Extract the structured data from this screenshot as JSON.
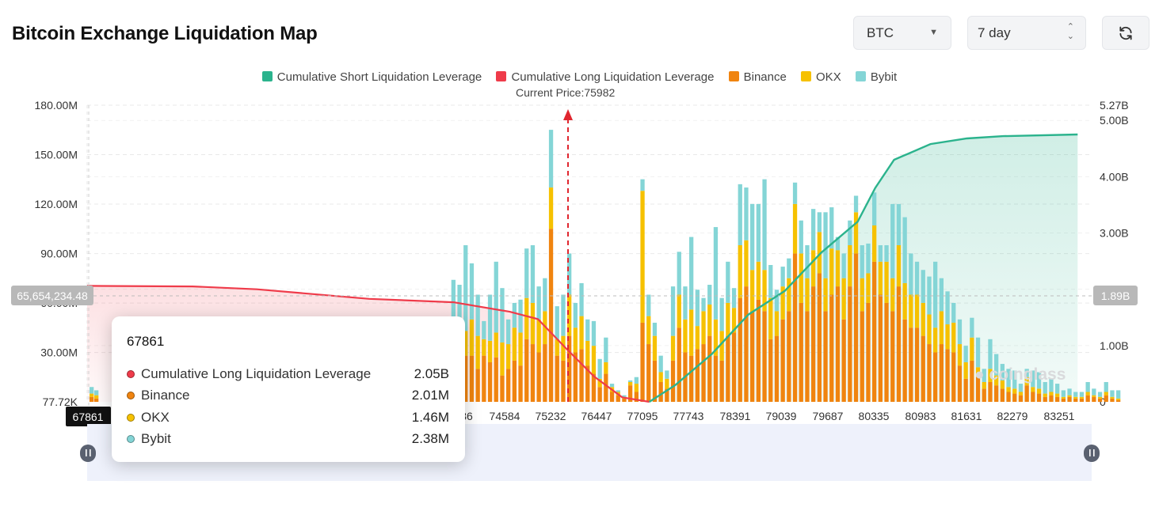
{
  "header": {
    "title": "Bitcoin Exchange Liquidation Map"
  },
  "controls": {
    "symbol": {
      "value": "BTC",
      "icon": "chevron-down-icon"
    },
    "range": {
      "value": "7 day",
      "icon": "up-down-icon"
    },
    "refresh": {
      "icon": "refresh-icon"
    }
  },
  "legend": [
    {
      "label": "Cumulative Short Liquidation Leverage",
      "color": "#2bb38d"
    },
    {
      "label": "Cumulative Long Liquidation Leverage",
      "color": "#ef3b4a"
    },
    {
      "label": "Binance",
      "color": "#f0840f"
    },
    {
      "label": "OKX",
      "color": "#f6c100"
    },
    {
      "label": "Bybit",
      "color": "#84d5d6"
    }
  ],
  "current_price_label": "Current Price:75982",
  "crosshair": {
    "left_value": "65,654,234.48",
    "right_value": "1.89B",
    "x_value": "67861"
  },
  "tooltip": {
    "title": "67861",
    "rows": [
      {
        "name": "Cumulative Long Liquidation Leverage",
        "value": "2.05B",
        "color": "#ef3b4a"
      },
      {
        "name": "Binance",
        "value": "2.01M",
        "color": "#f0840f"
      },
      {
        "name": "OKX",
        "value": "1.46M",
        "color": "#f6c100"
      },
      {
        "name": "Bybit",
        "value": "2.38M",
        "color": "#84d5d6"
      }
    ]
  },
  "watermark": "coinglass",
  "chart_data": {
    "type": "bar",
    "title": "Bitcoin Exchange Liquidation Map",
    "y_left_ticks": [
      "77.72K",
      "30.00M",
      "60.00M",
      "90.00M",
      "120.00M",
      "150.00M",
      "180.00M"
    ],
    "y_left_range": [
      77720,
      180000000
    ],
    "y_right_ticks": [
      "0",
      "1.00B",
      "2.00B",
      "3.00B",
      "4.00B",
      "5.00B",
      "5.27B"
    ],
    "y_right_range": [
      0,
      5270000000
    ],
    "x_tick_labels": [
      "74584",
      "75232",
      "76447",
      "77095",
      "77743",
      "78391",
      "79039",
      "79687",
      "80335",
      "80983",
      "81631",
      "82279",
      "83251"
    ],
    "current_price": 75982,
    "colors": {
      "binance": "#f0840f",
      "okx": "#f6c100",
      "bybit": "#84d5d6",
      "short": "#2bb38d",
      "long": "#ef3b4a"
    },
    "series_note_units": "bars in USD (M), cumulative lines in USD (B)",
    "bars_visible_region_start_price": 74260,
    "bars": [
      [
        17,
        5,
        8
      ],
      [
        30,
        17,
        27
      ],
      [
        26,
        20,
        25
      ],
      [
        28,
        15,
        52
      ],
      [
        28,
        22,
        34
      ],
      [
        20,
        20,
        25
      ],
      [
        28,
        10,
        11
      ],
      [
        24,
        13,
        28
      ],
      [
        27,
        15,
        43
      ],
      [
        16,
        20,
        33
      ],
      [
        20,
        15,
        15
      ],
      [
        25,
        20,
        15
      ],
      [
        22,
        20,
        20
      ],
      [
        38,
        25,
        30
      ],
      [
        35,
        25,
        35
      ],
      [
        30,
        20,
        20
      ],
      [
        35,
        20,
        20
      ],
      [
        105,
        25,
        35
      ],
      [
        28,
        10,
        20
      ],
      [
        25,
        15,
        25
      ],
      [
        40,
        25,
        25
      ],
      [
        30,
        15,
        15
      ],
      [
        32,
        20,
        20
      ],
      [
        22,
        15,
        13
      ],
      [
        17,
        17,
        15
      ],
      [
        9,
        5,
        12
      ],
      [
        17,
        7,
        15
      ],
      [
        6,
        3,
        2
      ],
      [
        4,
        2,
        1
      ],
      [
        2,
        1,
        1
      ],
      [
        10,
        2,
        1
      ],
      [
        6,
        5,
        4
      ],
      [
        48,
        80,
        7
      ],
      [
        35,
        17,
        13
      ],
      [
        25,
        15,
        8
      ],
      [
        12,
        6,
        10
      ],
      [
        8,
        6,
        5
      ],
      [
        25,
        15,
        30
      ],
      [
        45,
        20,
        26
      ],
      [
        30,
        20,
        20
      ],
      [
        28,
        28,
        44
      ],
      [
        32,
        14,
        22
      ],
      [
        35,
        20,
        8
      ],
      [
        40,
        19,
        12
      ],
      [
        28,
        22,
        56
      ],
      [
        25,
        18,
        20
      ],
      [
        40,
        20,
        25
      ],
      [
        42,
        15,
        12
      ],
      [
        63,
        32,
        37
      ],
      [
        70,
        28,
        32
      ],
      [
        55,
        25,
        40
      ],
      [
        62,
        23,
        35
      ],
      [
        55,
        25,
        55
      ],
      [
        38,
        25,
        20
      ],
      [
        40,
        15,
        13
      ],
      [
        50,
        20,
        12
      ],
      [
        55,
        20,
        12
      ],
      [
        90,
        30,
        13
      ],
      [
        60,
        30,
        20
      ],
      [
        55,
        20,
        20
      ],
      [
        70,
        22,
        25
      ],
      [
        78,
        25,
        12
      ],
      [
        55,
        20,
        40
      ],
      [
        65,
        28,
        25
      ],
      [
        70,
        22,
        8
      ],
      [
        50,
        25,
        15
      ],
      [
        70,
        25,
        15
      ],
      [
        90,
        25,
        10
      ],
      [
        55,
        20,
        20
      ],
      [
        60,
        18,
        18
      ],
      [
        85,
        22,
        20
      ],
      [
        65,
        20,
        10
      ],
      [
        60,
        25,
        10
      ],
      [
        55,
        20,
        45
      ],
      [
        70,
        25,
        25
      ],
      [
        50,
        22,
        40
      ],
      [
        45,
        20,
        25
      ],
      [
        45,
        20,
        20
      ],
      [
        40,
        20,
        20
      ],
      [
        35,
        18,
        23
      ],
      [
        30,
        15,
        40
      ],
      [
        35,
        20,
        20
      ],
      [
        32,
        15,
        20
      ],
      [
        30,
        18,
        12
      ],
      [
        22,
        13,
        15
      ],
      [
        14,
        10,
        10
      ],
      [
        25,
        14,
        12
      ],
      [
        15,
        6,
        18
      ],
      [
        8,
        4,
        8
      ],
      [
        12,
        8,
        18
      ],
      [
        10,
        6,
        13
      ],
      [
        8,
        5,
        10
      ],
      [
        6,
        3,
        11
      ],
      [
        5,
        3,
        11
      ],
      [
        4,
        2,
        5
      ],
      [
        10,
        5,
        5
      ],
      [
        6,
        3,
        10
      ],
      [
        5,
        3,
        10
      ],
      [
        3,
        2,
        7
      ],
      [
        4,
        2,
        8
      ],
      [
        3,
        2,
        6
      ],
      [
        2,
        1,
        4
      ],
      [
        3,
        1,
        4
      ],
      [
        2,
        1,
        3
      ],
      [
        2,
        1,
        3
      ],
      [
        4,
        2,
        6
      ],
      [
        3,
        1,
        4
      ],
      [
        2,
        1,
        3
      ],
      [
        4,
        2,
        6
      ],
      [
        2,
        1,
        4
      ],
      [
        1,
        1,
        5
      ]
    ],
    "long_cumulative_B": [
      [
        65982,
        2.06
      ],
      [
        67861,
        2.05
      ],
      [
        69000,
        2.0
      ],
      [
        71000,
        1.83
      ],
      [
        72500,
        1.77
      ],
      [
        73500,
        1.6
      ],
      [
        74000,
        1.47
      ],
      [
        74500,
        0.95
      ],
      [
        75000,
        0.45
      ],
      [
        75500,
        0.08
      ],
      [
        75982,
        0
      ]
    ],
    "short_cumulative_B": [
      [
        75982,
        0
      ],
      [
        76447,
        0.3
      ],
      [
        77095,
        0.85
      ],
      [
        77743,
        1.55
      ],
      [
        78391,
        1.97
      ],
      [
        79039,
        2.65
      ],
      [
        79687,
        3.2
      ],
      [
        80000,
        3.8
      ],
      [
        80335,
        4.3
      ],
      [
        80983,
        4.58
      ],
      [
        81631,
        4.68
      ],
      [
        82279,
        4.72
      ],
      [
        83600,
        4.75
      ]
    ]
  }
}
